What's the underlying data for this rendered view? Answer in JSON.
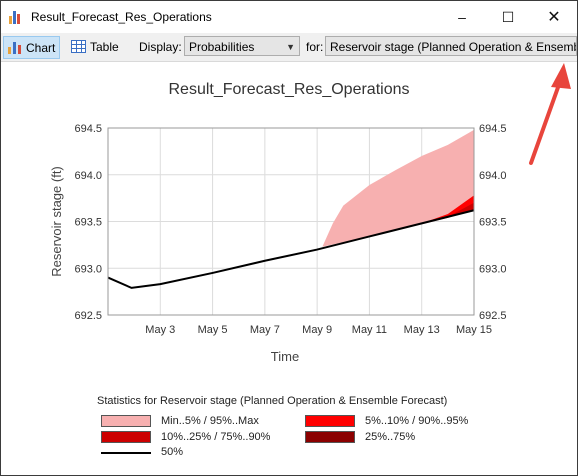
{
  "window": {
    "title": "Result_Forecast_Res_Operations"
  },
  "toolbar": {
    "chart_label": "Chart",
    "table_label": "Table",
    "display_label": "Display:",
    "display_value": "Probabilities",
    "for_label": "for:",
    "for_value": "Reservoir stage (Planned Operation & Ensemble Forecast)"
  },
  "chart_data": {
    "type": "area",
    "title": "Result_Forecast_Res_Operations",
    "xlabel": "Time",
    "ylabel": "Reservoir stage (ft)",
    "ylim": [
      692.5,
      694.5
    ],
    "yticks": [
      "692.5",
      "693.0",
      "693.5",
      "694.0",
      "694.5"
    ],
    "xticks": [
      "May 3",
      "May 5",
      "May 7",
      "May 9",
      "May 11",
      "May 13",
      "May 15"
    ],
    "xrange": [
      1,
      15
    ],
    "grid": true,
    "median": [
      [
        1.0,
        692.9
      ],
      [
        1.9,
        692.79
      ],
      [
        3,
        692.83
      ],
      [
        5,
        692.95
      ],
      [
        7,
        693.08
      ],
      [
        9,
        693.2
      ],
      [
        11,
        693.34
      ],
      [
        13,
        693.48
      ],
      [
        15,
        693.62
      ]
    ],
    "band_min_max": {
      "upper": [
        [
          9.2,
          693.23
        ],
        [
          9.6,
          693.48
        ],
        [
          10,
          693.67
        ],
        [
          11,
          693.89
        ],
        [
          12,
          694.05
        ],
        [
          13,
          694.2
        ],
        [
          14,
          694.32
        ],
        [
          15,
          694.48
        ]
      ],
      "lower": [
        [
          9.2,
          693.23
        ],
        [
          11,
          693.34
        ],
        [
          13,
          693.48
        ],
        [
          15,
          693.62
        ]
      ]
    },
    "band_5_95": {
      "upper": [
        [
          12.6,
          693.45
        ],
        [
          13,
          693.48
        ],
        [
          14,
          693.58
        ],
        [
          15,
          693.78
        ]
      ],
      "lower": [
        [
          12.6,
          693.45
        ],
        [
          13,
          693.47
        ],
        [
          14,
          693.54
        ],
        [
          15,
          693.62
        ]
      ]
    },
    "band_10_90": {
      "upper": [
        [
          13.2,
          693.49
        ],
        [
          14,
          693.55
        ],
        [
          15,
          693.7
        ]
      ],
      "lower": [
        [
          13.2,
          693.49
        ],
        [
          14,
          693.54
        ],
        [
          15,
          693.63
        ]
      ]
    },
    "legend_title": "Statistics for Reservoir stage (Planned Operation & Ensemble Forecast)",
    "legend": [
      {
        "label": "Min..5% / 95%..Max",
        "color": "#f7b0b0"
      },
      {
        "label": "5%..10% / 90%..95%",
        "color": "#ff0000"
      },
      {
        "label": "10%..25% / 75%..90%",
        "color": "#cc0000"
      },
      {
        "label": "25%..75%",
        "color": "#8b0000"
      },
      {
        "label": "50%",
        "color": "#000000"
      }
    ]
  }
}
